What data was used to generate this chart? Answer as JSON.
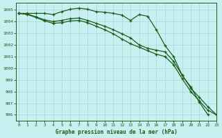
{
  "title": "Graphe pression niveau de la mer (hPa)",
  "background_color": "#c8f0f0",
  "grid_color": "#a8d8d8",
  "line_color": "#1a5c1a",
  "xlim": [
    -0.3,
    23
  ],
  "ylim": [
    995.5,
    1005.6
  ],
  "yticks": [
    996,
    997,
    998,
    999,
    1000,
    1001,
    1002,
    1003,
    1004,
    1005
  ],
  "xticks": [
    0,
    1,
    2,
    3,
    4,
    5,
    6,
    7,
    8,
    9,
    10,
    11,
    12,
    13,
    14,
    15,
    16,
    17,
    18,
    19,
    20,
    21,
    22,
    23
  ],
  "line1_x": [
    0,
    1,
    2,
    3,
    4,
    5,
    6,
    7,
    8,
    9,
    10,
    11,
    12,
    13,
    14,
    15,
    16,
    17,
    18,
    19,
    20,
    21,
    22
  ],
  "line1_y": [
    1004.7,
    1004.7,
    1004.7,
    1004.7,
    1004.6,
    1004.85,
    1005.05,
    1005.15,
    1005.05,
    1004.85,
    1004.8,
    1004.7,
    1004.55,
    1004.1,
    1004.6,
    1004.45,
    1003.3,
    1001.95,
    1001.0,
    999.4,
    998.4,
    997.1,
    996.0
  ],
  "line2_x": [
    0,
    1,
    2,
    3,
    4,
    5,
    6,
    7,
    8,
    9,
    10,
    11,
    12,
    13,
    14,
    15,
    16,
    17,
    18,
    19,
    20,
    21,
    22,
    23
  ],
  "line2_y": [
    1004.7,
    1004.65,
    1004.4,
    1004.15,
    1004.0,
    1004.1,
    1004.25,
    1004.3,
    1004.1,
    1003.85,
    1003.6,
    1003.3,
    1002.95,
    1002.6,
    1002.0,
    1001.7,
    1001.55,
    1001.4,
    1000.6,
    999.4,
    998.3,
    997.5,
    996.7,
    996.0
  ],
  "line3_x": [
    0,
    1,
    2,
    3,
    4,
    5,
    6,
    7,
    8,
    9,
    10,
    11,
    12,
    13,
    14,
    15,
    16,
    17,
    18,
    19,
    20,
    21,
    22,
    23
  ],
  "line3_y": [
    1004.7,
    1004.6,
    1004.35,
    1004.05,
    1003.85,
    1003.9,
    1004.05,
    1004.1,
    1003.9,
    1003.6,
    1003.3,
    1002.95,
    1002.5,
    1002.1,
    1001.8,
    1001.5,
    1001.2,
    1001.0,
    1000.3,
    999.1,
    998.0,
    997.2,
    996.4,
    996.0
  ]
}
